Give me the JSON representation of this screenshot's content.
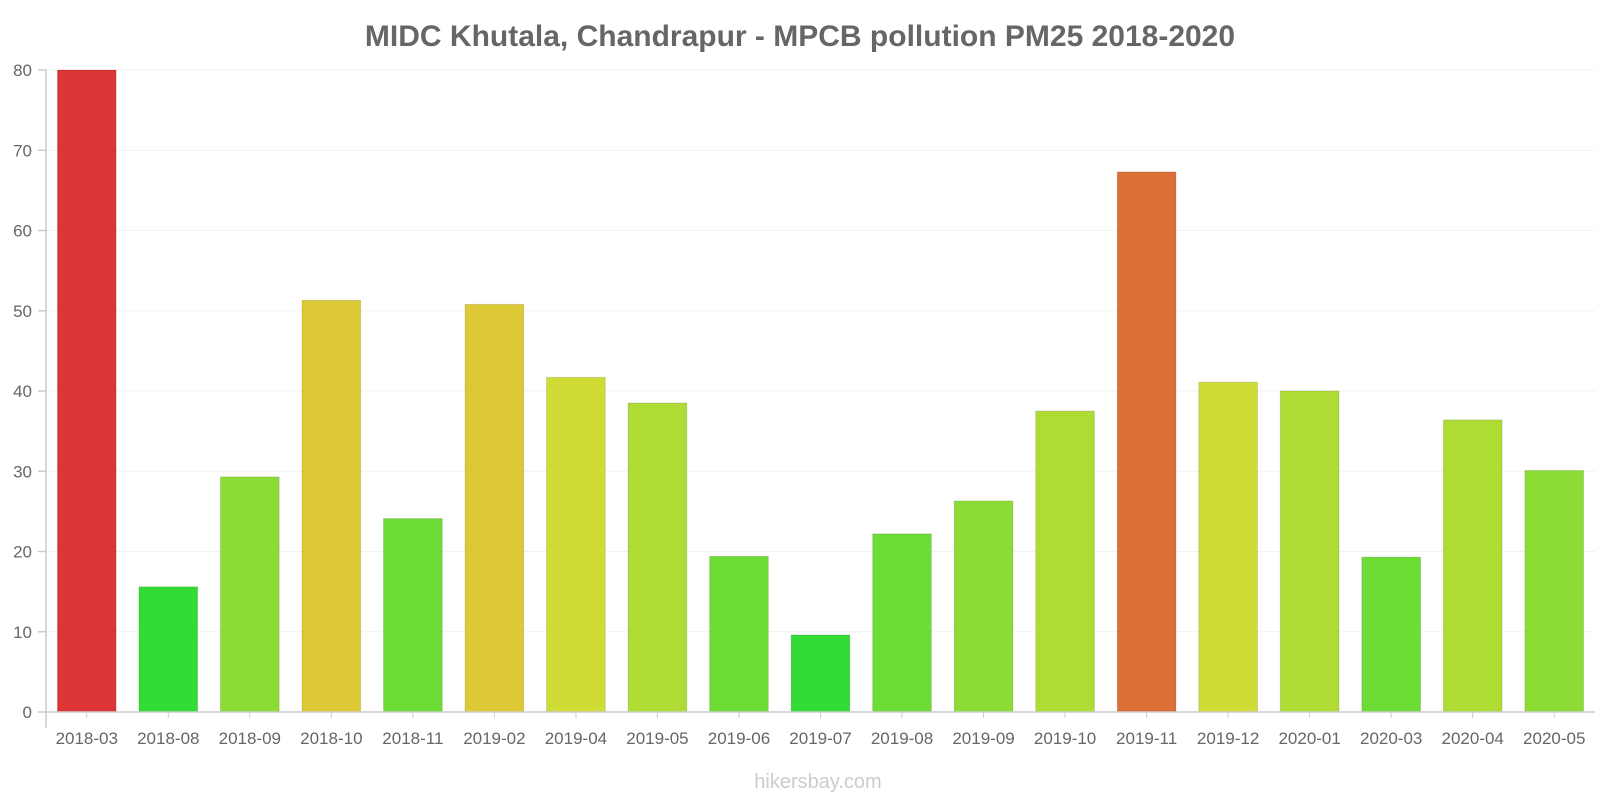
{
  "chart_data": {
    "type": "bar",
    "title": "MIDC Khutala, Chandrapur - MPCB pollution PM25 2018-2020",
    "xlabel": "",
    "ylabel": "",
    "ylim": [
      0,
      80
    ],
    "yticks": [
      0,
      10,
      20,
      30,
      40,
      50,
      60,
      70,
      80
    ],
    "grid": true,
    "categories": [
      "2018-03",
      "2018-08",
      "2018-09",
      "2018-10",
      "2018-11",
      "2019-02",
      "2019-04",
      "2019-05",
      "2019-06",
      "2019-07",
      "2019-08",
      "2019-09",
      "2019-10",
      "2019-11",
      "2019-12",
      "2020-01",
      "2020-03",
      "2020-04",
      "2020-05"
    ],
    "values": [
      80,
      15.6,
      29.3,
      51.3,
      24.1,
      50.8,
      41.7,
      38.5,
      19.4,
      9.6,
      22.2,
      26.3,
      37.5,
      67.3,
      41.1,
      40.0,
      19.3,
      36.4,
      30.1
    ],
    "colors": [
      "#dc3535",
      "#33dc35",
      "#8ddc35",
      "#dcc935",
      "#6ddc35",
      "#dcc935",
      "#cfdc35",
      "#aedc35",
      "#6ddc35",
      "#33dc35",
      "#6ddc35",
      "#8ddc35",
      "#aedc35",
      "#dc6f35",
      "#cfdc35",
      "#aedc35",
      "#6ddc35",
      "#aedc35",
      "#8ddc35"
    ]
  },
  "watermark": "hikersbay.com"
}
